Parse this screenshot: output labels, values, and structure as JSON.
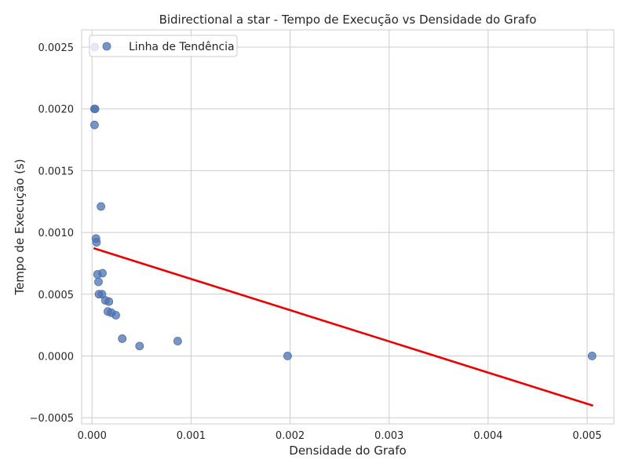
{
  "chart_data": {
    "type": "scatter",
    "title": "Bidirectional a star - Tempo de Execução vs Densidade do Grafo",
    "xlabel": "Densidade do Grafo",
    "ylabel": "Tempo de Execução (s)",
    "xlim": [
      -0.000105,
      0.00527
    ],
    "ylim": [
      -0.00055,
      0.00264
    ],
    "xticks": [
      0.0,
      0.001,
      0.002,
      0.003,
      0.004,
      0.005
    ],
    "xtick_labels": [
      "0.000",
      "0.001",
      "0.002",
      "0.003",
      "0.004",
      "0.005"
    ],
    "yticks": [
      -0.0005,
      0.0,
      0.0005,
      0.001,
      0.0015,
      0.002,
      0.0025
    ],
    "ytick_labels": [
      "−0.0005",
      "0.0000",
      "0.0005",
      "0.0010",
      "0.0015",
      "0.0020",
      "0.0025"
    ],
    "grid": true,
    "legend": {
      "placement": "top-left",
      "entries": [
        "Linha de Tendência"
      ]
    },
    "points": [
      {
        "x": 2.8e-05,
        "y": 0.0025
      },
      {
        "x": 2.5e-05,
        "y": 0.002
      },
      {
        "x": 3e-05,
        "y": 0.002
      },
      {
        "x": 2.5e-05,
        "y": 0.00187
      },
      {
        "x": 9e-05,
        "y": 0.00121
      },
      {
        "x": 4e-05,
        "y": 0.00095
      },
      {
        "x": 4.5e-05,
        "y": 0.00092
      },
      {
        "x": 5.5e-05,
        "y": 0.00066
      },
      {
        "x": 0.000105,
        "y": 0.00067
      },
      {
        "x": 6.5e-05,
        "y": 0.0006
      },
      {
        "x": 7e-05,
        "y": 0.0005
      },
      {
        "x": 0.0001,
        "y": 0.0005
      },
      {
        "x": 0.000135,
        "y": 0.00045
      },
      {
        "x": 0.00017,
        "y": 0.00044
      },
      {
        "x": 0.00016,
        "y": 0.00036
      },
      {
        "x": 0.000195,
        "y": 0.00035
      },
      {
        "x": 0.00024,
        "y": 0.00033
      },
      {
        "x": 0.000305,
        "y": 0.00014
      },
      {
        "x": 0.00048,
        "y": 8e-05
      },
      {
        "x": 0.000865,
        "y": 0.00012
      },
      {
        "x": 0.001975,
        "y": 0.0
      },
      {
        "x": 0.00505,
        "y": 0.0
      }
    ],
    "trend_line": {
      "x": [
        2.5e-05,
        0.00505
      ],
      "y": [
        0.00087,
        -0.0004
      ],
      "color": "#ee0000"
    },
    "colors": {
      "points": "#4c72b0",
      "trend": "#ee0000",
      "grid": "#cccccc",
      "spine": "#cccccc"
    }
  }
}
